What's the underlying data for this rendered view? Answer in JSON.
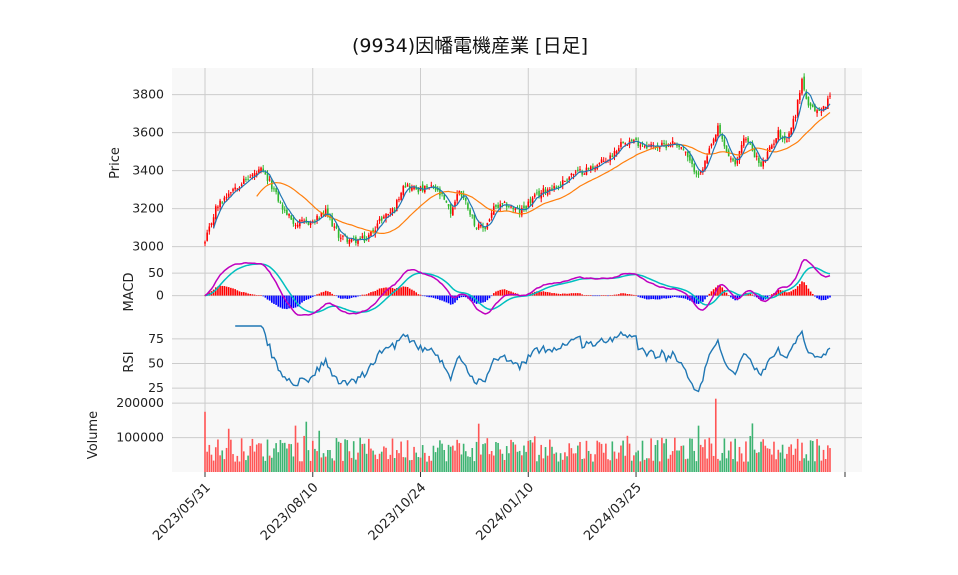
{
  "chart_data": {
    "type": "candlestick",
    "title": "(9934)因幡電機産業 [日足]",
    "x_tick_labels": [
      "2023/05/31",
      "2023/08/10",
      "2023/10/24",
      "2024/01/10",
      "2024/03/25"
    ],
    "grid": true,
    "panels": [
      {
        "name": "price",
        "ylabel": "Price",
        "ylim": [
          2940,
          3940
        ],
        "ticks": [
          3000,
          3200,
          3400,
          3600,
          3800
        ],
        "anchors": [
          [
            0,
            3020
          ],
          [
            5,
            3200
          ],
          [
            12,
            3300
          ],
          [
            20,
            3360
          ],
          [
            26,
            3400
          ],
          [
            31,
            3320
          ],
          [
            36,
            3200
          ],
          [
            42,
            3120
          ],
          [
            50,
            3130
          ],
          [
            56,
            3180
          ],
          [
            62,
            3060
          ],
          [
            68,
            3030
          ],
          [
            75,
            3040
          ],
          [
            82,
            3150
          ],
          [
            88,
            3200
          ],
          [
            92,
            3330
          ],
          [
            96,
            3310
          ],
          [
            100,
            3300
          ],
          [
            106,
            3310
          ],
          [
            110,
            3260
          ],
          [
            114,
            3180
          ],
          [
            118,
            3300
          ],
          [
            122,
            3210
          ],
          [
            126,
            3100
          ],
          [
            130,
            3100
          ],
          [
            134,
            3200
          ],
          [
            140,
            3220
          ],
          [
            146,
            3180
          ],
          [
            152,
            3250
          ],
          [
            158,
            3300
          ],
          [
            164,
            3320
          ],
          [
            170,
            3380
          ],
          [
            176,
            3400
          ],
          [
            182,
            3430
          ],
          [
            188,
            3470
          ],
          [
            194,
            3560
          ],
          [
            200,
            3550
          ],
          [
            206,
            3530
          ],
          [
            212,
            3530
          ],
          [
            218,
            3550
          ],
          [
            222,
            3510
          ],
          [
            226,
            3420
          ],
          [
            230,
            3380
          ],
          [
            234,
            3500
          ],
          [
            238,
            3620
          ],
          [
            242,
            3500
          ],
          [
            246,
            3420
          ],
          [
            250,
            3580
          ],
          [
            254,
            3510
          ],
          [
            258,
            3420
          ],
          [
            262,
            3510
          ],
          [
            266,
            3600
          ],
          [
            270,
            3560
          ],
          [
            274,
            3700
          ],
          [
            277,
            3880
          ],
          [
            280,
            3730
          ],
          [
            286,
            3710
          ],
          [
            290,
            3790
          ]
        ],
        "sma_short_window": 5,
        "sma_long_window": 25
      },
      {
        "name": "macd",
        "ylabel": "MACD",
        "ticks": [
          0,
          50
        ],
        "lines": [
          "MACD",
          "Signal"
        ],
        "line_colors": [
          "#bf00bf",
          "#00bfbf"
        ],
        "hist_colors": {
          "positive": "#ff0000",
          "negative": "#0000ff"
        }
      },
      {
        "name": "rsi",
        "ylabel": "RSI",
        "ylim": [
          15,
          88
        ],
        "ticks": [
          25,
          50,
          75
        ],
        "line_color": "#1f77b4"
      },
      {
        "name": "volume",
        "ylabel": "Volume",
        "ylim": [
          0,
          215000
        ],
        "ticks": [
          100000,
          200000
        ],
        "bar_colors": {
          "up": "#ff5555",
          "down": "#3cb371"
        }
      }
    ],
    "colors": {
      "candle_up": "#ff0000",
      "candle_down": "#2eb82e",
      "sma_short": "#1f77b4",
      "sma_long": "#ff7f0e",
      "panel_bg": "#f8f8f8",
      "grid": "#cccccc"
    }
  }
}
